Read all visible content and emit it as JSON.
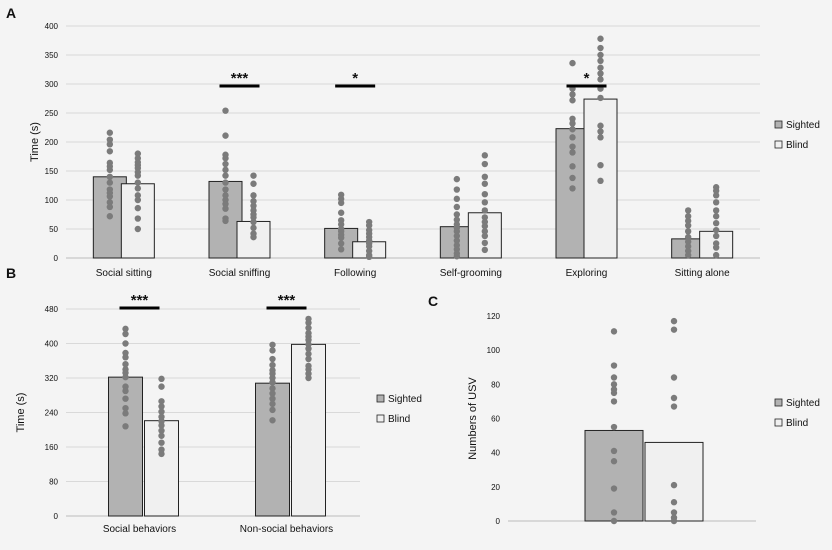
{
  "colors": {
    "background": "#f4f4f4",
    "sighted_bar": "#b2b2b2",
    "blind_bar": "#f0f0f0",
    "bar_stroke": "#222222",
    "dot": "#7b7b7b",
    "grid": "#d9d9d9",
    "sig_bar": "#000000"
  },
  "panels": {
    "A": {
      "label": "A"
    },
    "B": {
      "label": "B"
    },
    "C": {
      "label": "C"
    }
  },
  "chart_data": [
    {
      "id": "A",
      "type": "bar",
      "title": "",
      "ylabel": "Time (s)",
      "ylim": [
        0,
        400
      ],
      "yticks": [
        "0",
        "50",
        "100",
        "150",
        "200",
        "250",
        "300",
        "350",
        "400"
      ],
      "grid": true,
      "legend_placement": "right",
      "categories": [
        "Social sitting",
        "Social sniffing",
        "Following",
        "Self-grooming",
        "Exploring",
        "Sitting alone"
      ],
      "series": [
        {
          "name": "Sighted",
          "values": [
            140,
            132,
            51,
            54,
            223,
            33
          ]
        },
        {
          "name": "Blind",
          "values": [
            128,
            63,
            28,
            78,
            274,
            46
          ]
        }
      ],
      "points": {
        "Sighted": [
          [
            216,
            204,
            196,
            184,
            164,
            158,
            152,
            140,
            130,
            118,
            112,
            106,
            96,
            88,
            72
          ],
          [
            254,
            211,
            178,
            172,
            162,
            152,
            142,
            130,
            118,
            108,
            100,
            93,
            85,
            68,
            64
          ],
          [
            109,
            102,
            95,
            78,
            65,
            58,
            50,
            46,
            40,
            35,
            25,
            15
          ],
          [
            136,
            118,
            102,
            88,
            75,
            66,
            58,
            52,
            46,
            38,
            30,
            22,
            15,
            8,
            3
          ],
          [
            336,
            292,
            282,
            272,
            240,
            232,
            222,
            208,
            192,
            182,
            158,
            138,
            120
          ],
          [
            82,
            72,
            64,
            56,
            46,
            36,
            28,
            20,
            12,
            5
          ]
        ],
        "Blind": [
          [
            180,
            172,
            165,
            160,
            155,
            148,
            142,
            130,
            120,
            108,
            100,
            86,
            68,
            50
          ],
          [
            142,
            128,
            108,
            98,
            90,
            82,
            75,
            70,
            62,
            52,
            42,
            36
          ],
          [
            62,
            56,
            48,
            42,
            36,
            30,
            25,
            20,
            12,
            5,
            2
          ],
          [
            177,
            162,
            140,
            128,
            110,
            96,
            82,
            70,
            62,
            55,
            46,
            38,
            26,
            14
          ],
          [
            378,
            362,
            350,
            340,
            328,
            318,
            308,
            292,
            276,
            228,
            218,
            208,
            160,
            133
          ],
          [
            122,
            116,
            108,
            96,
            82,
            72,
            60,
            48,
            38,
            25,
            18,
            5
          ]
        ]
      },
      "significance": [
        {
          "label": "***",
          "category_index": 1
        },
        {
          "label": "*",
          "category_index": 2
        },
        {
          "label": "*",
          "category_index": 4
        }
      ]
    },
    {
      "id": "B",
      "type": "bar",
      "title": "",
      "ylabel": "Time (s)",
      "ylim": [
        0,
        480
      ],
      "yticks": [
        "0",
        "80",
        "160",
        "240",
        "320",
        "400",
        "480"
      ],
      "grid": true,
      "legend_placement": "right",
      "categories": [
        "Social behaviors",
        "Non-social behaviors"
      ],
      "series": [
        {
          "name": "Sighted",
          "values": [
            322,
            308
          ]
        },
        {
          "name": "Blind",
          "values": [
            221,
            398
          ]
        }
      ],
      "points": {
        "Sighted": [
          [
            434,
            422,
            400,
            378,
            368,
            352,
            340,
            332,
            322,
            300,
            290,
            272,
            250,
            238,
            208
          ],
          [
            397,
            384,
            364,
            350,
            338,
            330,
            320,
            310,
            296,
            284,
            272,
            260,
            246,
            222
          ]
        ],
        "Blind": [
          [
            318,
            300,
            266,
            254,
            242,
            230,
            220,
            210,
            198,
            186,
            170,
            154,
            144
          ],
          [
            457,
            448,
            436,
            424,
            416,
            408,
            398,
            388,
            376,
            364,
            348,
            340,
            330,
            320
          ]
        ]
      },
      "significance": [
        {
          "label": "***",
          "category_index": 0
        },
        {
          "label": "***",
          "category_index": 1
        }
      ]
    },
    {
      "id": "C",
      "type": "bar",
      "title": "",
      "ylabel": "Numbers of USV",
      "ylim": [
        0,
        120
      ],
      "yticks": [
        "0",
        "20",
        "40",
        "60",
        "80",
        "100",
        "120"
      ],
      "grid": false,
      "legend_placement": "right",
      "categories": [
        ""
      ],
      "series": [
        {
          "name": "Sighted",
          "values": [
            53
          ]
        },
        {
          "name": "Blind",
          "values": [
            46
          ]
        }
      ],
      "points": {
        "Sighted": [
          [
            111,
            91,
            84,
            80,
            77,
            75,
            70,
            55,
            41,
            35,
            19,
            5,
            0
          ]
        ],
        "Blind": [
          [
            117,
            112,
            84,
            72,
            67,
            21,
            11,
            5,
            2,
            0
          ]
        ]
      },
      "significance": []
    }
  ]
}
